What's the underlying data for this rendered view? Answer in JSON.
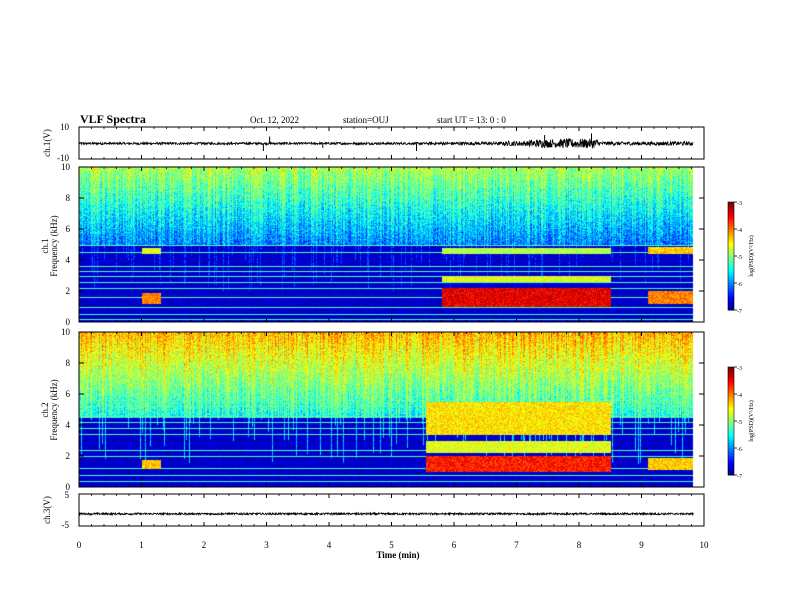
{
  "header": {
    "title": "VLF Spectra",
    "date": "Oct. 12, 2022",
    "station": "station=OUJ",
    "start_ut": "start  UT =   13: 0  : 0"
  },
  "chart_data": [
    {
      "type": "line",
      "panel": "ch1-waveform",
      "ylabel": "ch.1(V)",
      "ylim": [
        -10,
        10
      ],
      "yticks": [
        "10",
        "-10"
      ],
      "xlim": [
        0,
        10
      ],
      "x_data_end": 9.83,
      "baseline": -0.3,
      "noise_amp": [
        {
          "x": [
            0,
            5.6
          ],
          "amp": 0.7
        },
        {
          "x": [
            5.6,
            6.8
          ],
          "amp": 1.0
        },
        {
          "x": [
            6.8,
            7.2
          ],
          "amp": 1.6
        },
        {
          "x": [
            7.2,
            7.7
          ],
          "amp": 2.6
        },
        {
          "x": [
            7.7,
            8.3
          ],
          "amp": 3.0
        },
        {
          "x": [
            8.3,
            9.83
          ],
          "amp": 1.2
        }
      ],
      "spikes": [
        {
          "x": 2.95,
          "y": -5
        },
        {
          "x": 3.05,
          "y": 4
        },
        {
          "x": 3.9,
          "y": -3
        },
        {
          "x": 5.4,
          "y": -5
        },
        {
          "x": 7.45,
          "y": 5
        },
        {
          "x": 8.2,
          "y": 6
        }
      ]
    },
    {
      "type": "heatmap",
      "panel": "ch1-spectrogram",
      "ylabel": "ch.1\nFrequency (kHz)",
      "xlim": [
        0,
        10
      ],
      "ylim": [
        0,
        10
      ],
      "yticks": [
        0,
        2,
        4,
        6,
        8,
        10
      ],
      "x_data_end": 9.83,
      "colorbar": {
        "label": "log(PSD)(V²/Hz)",
        "min": -7,
        "max": -3,
        "ticks": [
          "-3",
          "-4",
          "-5",
          "-6",
          "-7"
        ]
      },
      "background_level": -6.9,
      "noise_top_khz": 5.0,
      "hf_level": -4.9,
      "flat_lines_khz": [
        0.2,
        0.5,
        1.0,
        1.6,
        2.2,
        2.6,
        3.0,
        3.3,
        3.6,
        4.5,
        5.0
      ],
      "emission_bands": [
        {
          "t": [
            1.0,
            1.3
          ],
          "f": [
            1.2,
            1.9
          ],
          "level": -4.0
        },
        {
          "t": [
            1.0,
            1.3
          ],
          "f": [
            4.4,
            4.8
          ],
          "level": -4.6
        },
        {
          "t": [
            5.8,
            8.5
          ],
          "f": [
            1.0,
            2.2
          ],
          "level": -3.4
        },
        {
          "t": [
            5.8,
            8.5
          ],
          "f": [
            2.6,
            3.0
          ],
          "level": -4.6
        },
        {
          "t": [
            5.8,
            8.5
          ],
          "f": [
            4.4,
            4.8
          ],
          "level": -4.8
        },
        {
          "t": [
            9.1,
            9.83
          ],
          "f": [
            1.2,
            2.0
          ],
          "level": -4.0
        },
        {
          "t": [
            9.1,
            9.83
          ],
          "f": [
            4.4,
            4.9
          ],
          "level": -4.3
        }
      ]
    },
    {
      "type": "heatmap",
      "panel": "ch2-spectrogram",
      "ylabel": "ch.2\nFrequency (kHz)",
      "xlim": [
        0,
        10
      ],
      "ylim": [
        0,
        10
      ],
      "yticks": [
        0,
        2,
        4,
        6,
        8,
        10
      ],
      "x_data_end": 9.83,
      "colorbar": {
        "label": "log(PSD)(V²/Hz)",
        "min": -7,
        "max": -3,
        "ticks": [
          "-3",
          "-4",
          "-5",
          "-6",
          "-7"
        ]
      },
      "background_level": -6.9,
      "noise_top_khz": 4.5,
      "hf_level": -4.3,
      "flat_lines_khz": [
        0.4,
        0.8,
        1.2,
        2.0,
        2.4,
        3.4,
        3.8,
        4.2,
        4.6,
        5.2,
        5.6
      ],
      "emission_bands": [
        {
          "t": [
            1.0,
            1.3
          ],
          "f": [
            1.2,
            1.8
          ],
          "level": -4.3
        },
        {
          "t": [
            5.55,
            8.5
          ],
          "f": [
            1.0,
            2.0
          ],
          "level": -3.6
        },
        {
          "t": [
            5.55,
            8.5
          ],
          "f": [
            3.4,
            5.5
          ],
          "level": -4.4
        },
        {
          "t": [
            5.55,
            8.5
          ],
          "f": [
            2.2,
            3.0
          ],
          "level": -4.6
        },
        {
          "t": [
            9.1,
            9.83
          ],
          "f": [
            1.1,
            1.9
          ],
          "level": -4.3
        }
      ]
    },
    {
      "type": "line",
      "panel": "ch3-waveform",
      "ylabel": "ch.3(V)",
      "ylim": [
        -5,
        5
      ],
      "yticks": [
        "5",
        "-5"
      ],
      "xlim": [
        0,
        10
      ],
      "x_data_end": 9.83,
      "baseline": -1.2,
      "noise_amp": [
        {
          "x": [
            0,
            9.83
          ],
          "amp": 0.3
        }
      ]
    }
  ],
  "xaxis": {
    "label": "Time (min)",
    "ticks": [
      "0",
      "1",
      "2",
      "3",
      "4",
      "5",
      "6",
      "7",
      "8",
      "9",
      "10"
    ]
  }
}
